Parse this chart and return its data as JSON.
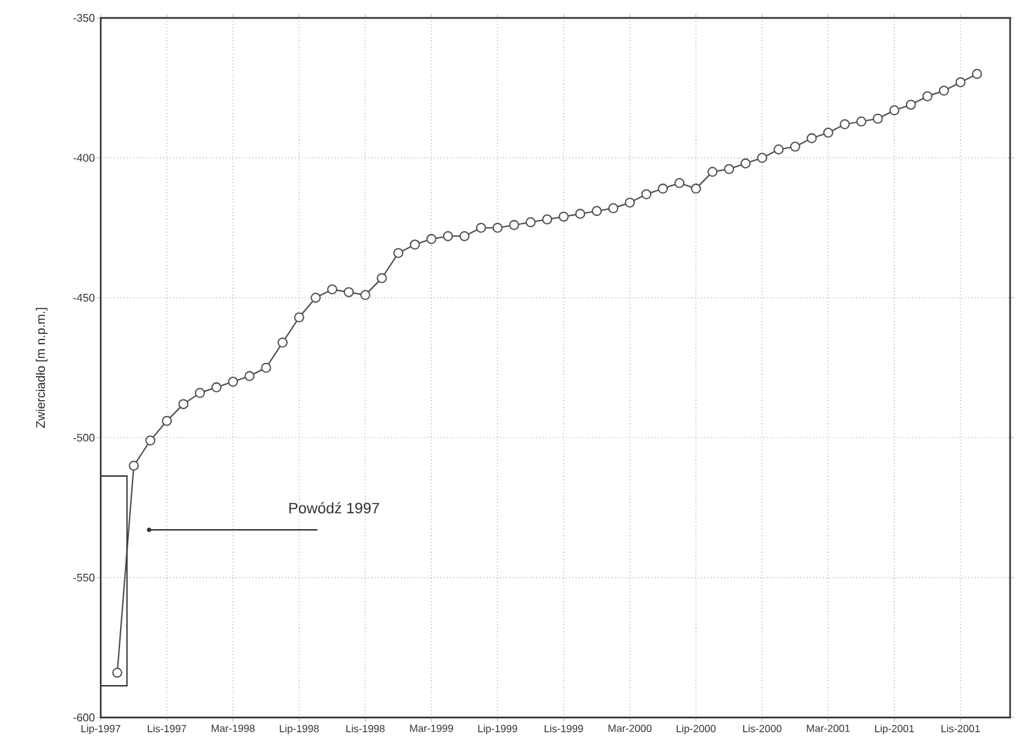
{
  "chart_data": {
    "type": "line",
    "ylabel": "Zwierciadło [m n.p.m.]",
    "x": [
      "1997-08",
      "1997-09",
      "1997-10",
      "1997-11",
      "1997-12",
      "1998-01",
      "1998-02",
      "1998-03",
      "1998-04",
      "1998-05",
      "1998-06",
      "1998-07",
      "1998-08",
      "1998-09",
      "1998-10",
      "1998-11",
      "1998-12",
      "1999-01",
      "1999-02",
      "1999-03",
      "1999-04",
      "1999-05",
      "1999-06",
      "1999-07",
      "1999-08",
      "1999-09",
      "1999-10",
      "1999-11",
      "1999-12",
      "2000-01",
      "2000-02",
      "2000-03",
      "2000-04",
      "2000-05",
      "2000-06",
      "2000-07",
      "2000-08",
      "2000-09",
      "2000-10",
      "2000-11",
      "2000-12",
      "2001-01",
      "2001-02",
      "2001-03",
      "2001-04",
      "2001-05",
      "2001-06",
      "2001-07",
      "2001-08",
      "2001-09",
      "2001-10",
      "2001-11",
      "2001-12"
    ],
    "values": [
      -584,
      -510,
      -501,
      -494,
      -488,
      -484,
      -482,
      -480,
      -478,
      -475,
      -466,
      -457,
      -450,
      -447,
      -448,
      -449,
      -443,
      -434,
      -431,
      -429,
      -428,
      -428,
      -425,
      -425,
      -424,
      -423,
      -422,
      -421,
      -420,
      -419,
      -418,
      -416,
      -413,
      -411,
      -409,
      -411,
      -405,
      -404,
      -402,
      -400,
      -397,
      -396,
      -393,
      -391,
      -388,
      -387,
      -386,
      -383,
      -381,
      -378,
      -376,
      -373,
      -370
    ],
    "color": "#4d4d4d",
    "marker": "circle",
    "line_style": "solid",
    "xlim": [
      "1997-07",
      "2002-02"
    ],
    "ylim": [
      -600,
      -350
    ],
    "xticks": [
      {
        "value": "1997-07",
        "label": "Lip-1997"
      },
      {
        "value": "1997-11",
        "label": "Lis-1997"
      },
      {
        "value": "1998-03",
        "label": "Mar-1998"
      },
      {
        "value": "1998-07",
        "label": "Lip-1998"
      },
      {
        "value": "1998-11",
        "label": "Lis-1998"
      },
      {
        "value": "1999-03",
        "label": "Mar-1999"
      },
      {
        "value": "1999-07",
        "label": "Lip-1999"
      },
      {
        "value": "1999-11",
        "label": "Lis-1999"
      },
      {
        "value": "2000-03",
        "label": "Mar-2000"
      },
      {
        "value": "2000-07",
        "label": "Lip-2000"
      },
      {
        "value": "2000-11",
        "label": "Lis-2000"
      },
      {
        "value": "2001-03",
        "label": "Mar-2001"
      },
      {
        "value": "2001-07",
        "label": "Lip-2001"
      },
      {
        "value": "2001-11",
        "label": "Lis-2001"
      }
    ],
    "yticks": [
      -600,
      -550,
      -500,
      -450,
      -400,
      -350
    ],
    "grid": true,
    "annotations": [
      "Powódź 1997"
    ]
  }
}
